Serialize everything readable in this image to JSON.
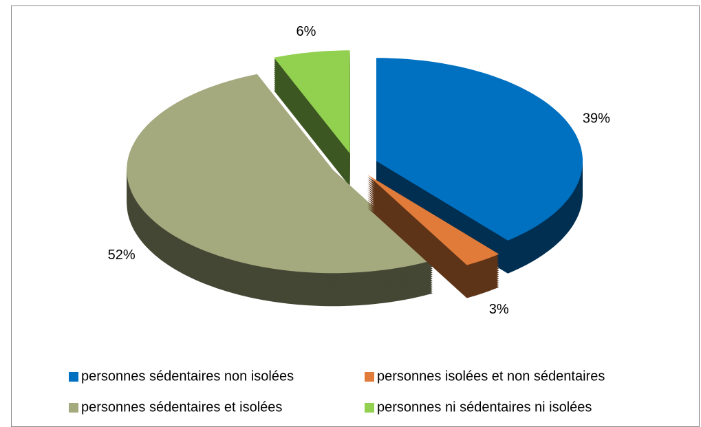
{
  "chart_data": {
    "type": "pie",
    "categories": [
      "personnes sédentaires non isolées",
      "personnes isolées et non sédentaires",
      "personnes sédentaires et isolées",
      "personnes ni sédentaires ni isolées"
    ],
    "values": [
      39,
      3,
      52,
      6
    ],
    "value_labels": [
      "39%",
      "3%",
      "52%",
      "6%"
    ],
    "colors": [
      "#0070c0",
      "#e07b39",
      "#a4a97e",
      "#92d050"
    ],
    "legend": "bottom"
  }
}
